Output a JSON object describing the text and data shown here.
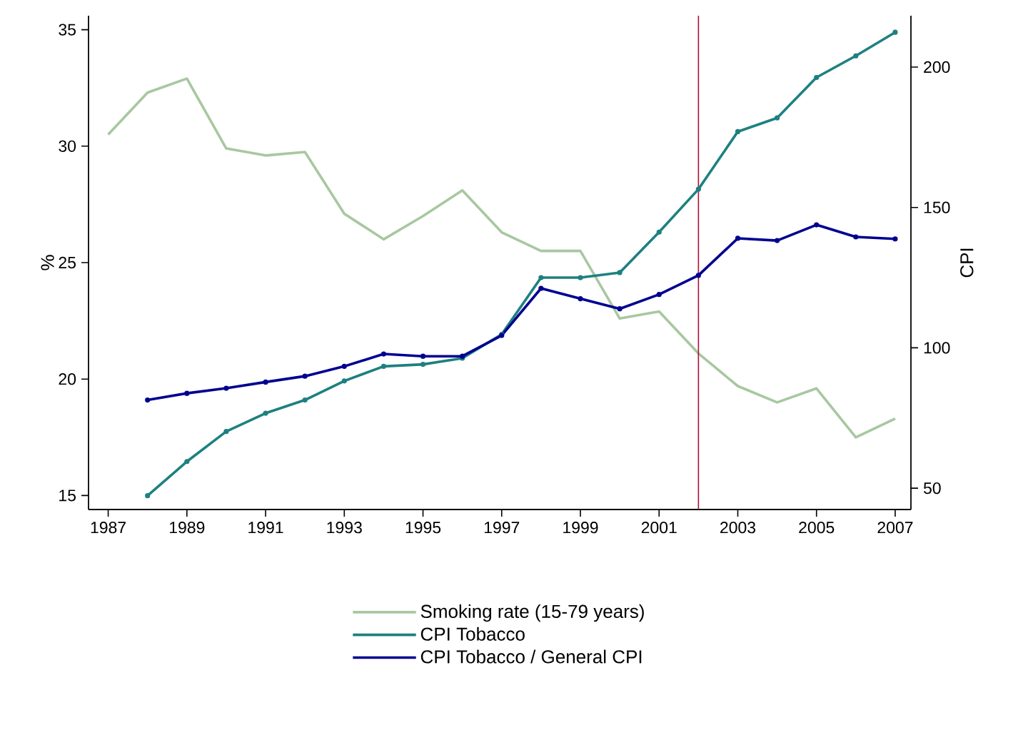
{
  "chart_data": {
    "type": "line",
    "ylabel": "%",
    "y2label": "CPI",
    "x": [
      1987,
      1988,
      1989,
      1990,
      1991,
      1992,
      1993,
      1994,
      1995,
      1996,
      1997,
      1998,
      1999,
      2000,
      2001,
      2002,
      2003,
      2004,
      2005,
      2006,
      2007
    ],
    "series": [
      {
        "name": "Smoking rate (15-79 years)",
        "color": "#a8c8a0",
        "marker": "none",
        "values": [
          30.5,
          32.3,
          32.9,
          29.9,
          29.6,
          29.75,
          27.1,
          26.0,
          27.0,
          28.1,
          26.3,
          25.5,
          25.5,
          22.6,
          22.9,
          21.1,
          19.7,
          19.0,
          19.6,
          17.5,
          18.3
        ]
      },
      {
        "name": "CPI Tobacco",
        "color": "#1e8080",
        "axis": "y2",
        "marker": "circle",
        "values": [
          null,
          47.3,
          59.5,
          70.2,
          76.7,
          81.4,
          88.2,
          93.4,
          94.1,
          96.3,
          104.8,
          125,
          125,
          126.8,
          141.2,
          156.5,
          177,
          181.9,
          196.3,
          204,
          212.4
        ]
      },
      {
        "name": "CPI Tobacco / General CPI",
        "color": "#000090",
        "axis": "y2",
        "marker": "circle",
        "values": [
          null,
          81.4,
          83.8,
          85.6,
          87.8,
          89.9,
          93.4,
          97.8,
          97,
          97,
          104.4,
          121.2,
          117.5,
          113.9,
          119,
          125.8,
          139,
          138.2,
          143.8,
          139.5,
          138.8
        ]
      }
    ],
    "xlim": [
      1986.5,
      2007.4
    ],
    "xticks": [
      1987,
      1989,
      1991,
      1993,
      1995,
      1997,
      1999,
      2001,
      2003,
      2005,
      2007
    ],
    "ylim": [
      14.4,
      35.6
    ],
    "yticks": [
      15,
      20,
      25,
      30,
      35
    ],
    "y2lim": [
      42.4,
      218.3
    ],
    "y2ticks": [
      50,
      100,
      150,
      200
    ],
    "ref_lines": [
      {
        "axis": "x",
        "value": 2002,
        "color": "#b0103a"
      }
    ],
    "grid": false,
    "legend": "bottom",
    "line_style": "solid"
  }
}
